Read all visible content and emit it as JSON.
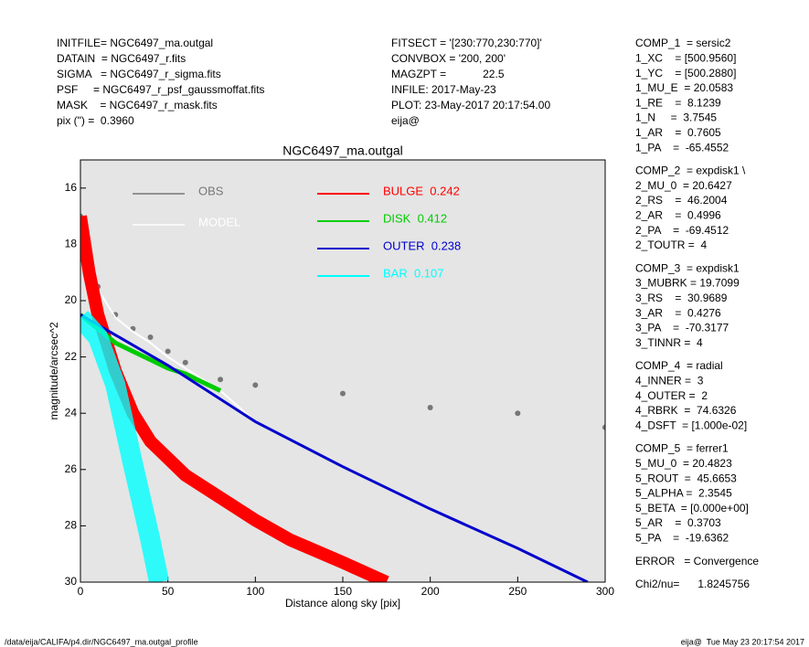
{
  "header": {
    "left": [
      "INITFILE= NGC6497_ma.outgal",
      "DATAIN  = NGC6497_r.fits",
      "SIGMA   = NGC6497_r_sigma.fits",
      "PSF     = NGC6497_r_psf_gaussmoffat.fits",
      "MASK    = NGC6497_r_mask.fits",
      "pix (\") =  0.3960"
    ],
    "center": [
      "FITSECT = '[230:770,230:770]'",
      "CONVBOX = '200, 200'",
      "MAGZPT =            22.5",
      "INFILE: 2017-May-23",
      "PLOT: 23-May-2017 20:17:54.00",
      "eija@"
    ]
  },
  "params": [
    [
      "COMP_1  = sersic2",
      "1_XC    = [500.9560]",
      "1_YC    = [500.2880]",
      "1_MU_E  = 20.0583",
      "1_RE    =  8.1239",
      "1_N     =  3.7545",
      "1_AR    =  0.7605",
      "1_PA    =  -65.4552"
    ],
    [
      "COMP_2  = expdisk1 \\",
      "2_MU_0  = 20.6427",
      "2_RS    =  46.2004",
      "2_AR    =  0.4996",
      "2_PA    =  -69.4512",
      "2_TOUTR =  4"
    ],
    [
      "COMP_3  = expdisk1",
      "3_MUBRK = 19.7099",
      "3_RS    =  30.9689",
      "3_AR    =  0.4276",
      "3_PA    =  -70.3177",
      "3_TINNR =  4"
    ],
    [
      "COMP_4  = radial",
      "4_INNER =  3",
      "4_OUTER =  2",
      "4_RBRK  =  74.6326",
      "4_DSFT  = [1.000e-02]"
    ],
    [
      "COMP_5  = ferrer1",
      "5_MU_0  = 20.4823",
      "5_ROUT  =  45.6653",
      "5_ALPHA =  2.3545",
      "5_BETA  = [0.000e+00]",
      "5_AR    =  0.3703",
      "5_PA    =  -19.6362"
    ],
    [
      "ERROR   = Convergence"
    ],
    [
      "Chi2/nu=      1.8245756"
    ]
  ],
  "footer": {
    "left": "/data/eija/CALIFA/p4.dir/NGC6497_ma.outgal_profile",
    "right": "eija@  Tue May 23 20:17:54 2017"
  },
  "chart_data": {
    "type": "scatter",
    "title": "NGC6497_ma.outgal",
    "x_label": "Distance along sky [pix]",
    "y_label": "magnitude/arcsec^2",
    "xlim": [
      0,
      300
    ],
    "ylim": [
      30,
      15
    ],
    "xticks": [
      0,
      50,
      100,
      150,
      200,
      250,
      300
    ],
    "yticks": [
      16,
      18,
      20,
      22,
      24,
      26,
      28,
      30
    ],
    "series": [
      {
        "name": "OBS",
        "color": "#777777",
        "x": [
          0,
          5,
          10,
          20,
          30,
          40,
          50,
          60,
          80,
          100,
          150,
          200,
          250,
          300
        ],
        "values": [
          17,
          18.5,
          19.5,
          20.5,
          21,
          21.3,
          21.8,
          22.2,
          22.8,
          23,
          23.3,
          23.8,
          24,
          24.5
        ]
      },
      {
        "name": "MODEL",
        "color": "#ffffff",
        "x": [
          0,
          5,
          10,
          20,
          30,
          40,
          50,
          60,
          80,
          100
        ],
        "values": [
          17,
          18.6,
          19.6,
          20.6,
          21.1,
          21.5,
          22,
          22.4,
          23.2,
          24.3
        ]
      },
      {
        "name": "BULGE  0.242",
        "color": "#ff0000",
        "x": [
          0,
          5,
          10,
          20,
          30,
          40,
          60,
          80,
          100,
          120,
          150,
          175
        ],
        "values": [
          17,
          19,
          20.5,
          22.5,
          24,
          25,
          26.2,
          27,
          27.8,
          28.5,
          29.3,
          30
        ]
      },
      {
        "name": "DISK  0.412",
        "color": "#00cc00",
        "x": [
          0,
          10,
          20,
          30,
          40,
          50,
          60,
          70,
          80
        ],
        "values": [
          20.5,
          21,
          21.5,
          21.8,
          22.1,
          22.4,
          22.6,
          22.9,
          23.2
        ]
      },
      {
        "name": "OUTER  0.238",
        "color": "#0000cc",
        "x": [
          0,
          50,
          100,
          150,
          200,
          250,
          290
        ],
        "values": [
          20.5,
          22.3,
          24.3,
          25.9,
          27.4,
          28.8,
          30
        ]
      },
      {
        "name": "BAR  0.107",
        "color": "#00ffff",
        "x": [
          0,
          10,
          20,
          30,
          40,
          45
        ],
        "values": [
          20.6,
          21.3,
          23,
          25.8,
          28.5,
          30
        ]
      }
    ]
  }
}
